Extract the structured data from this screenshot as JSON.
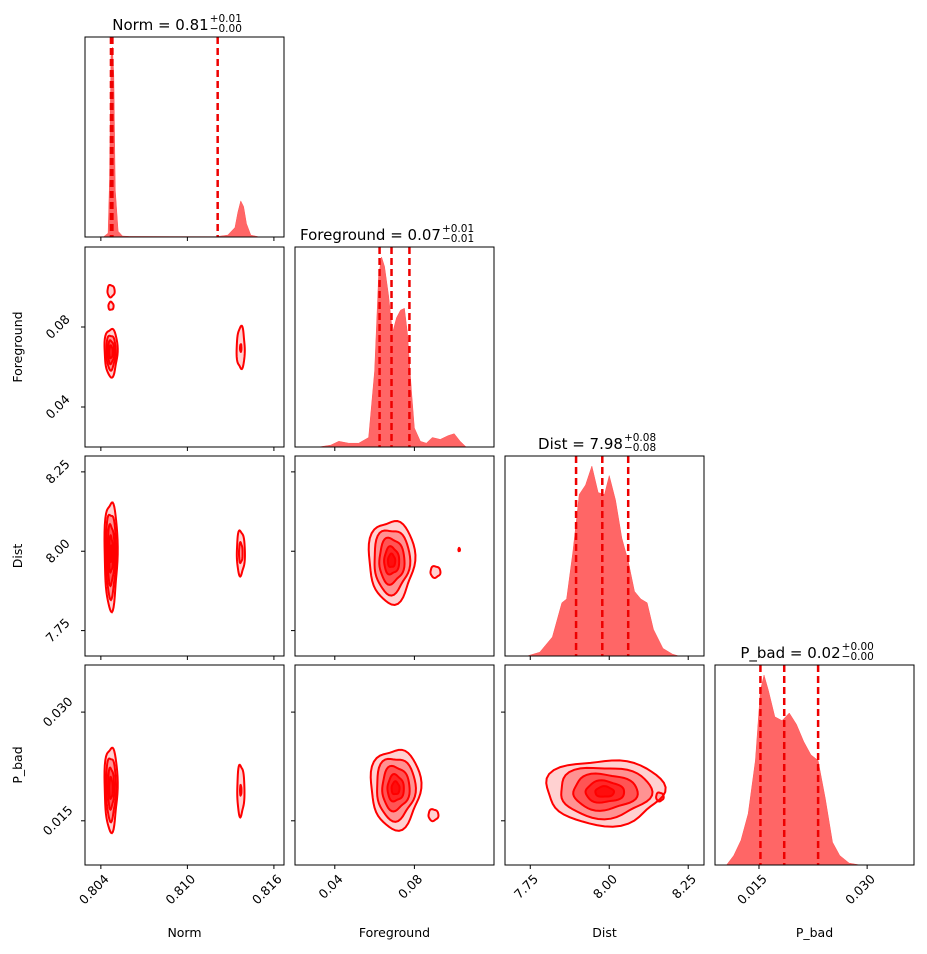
{
  "chart_data": {
    "type": "corner",
    "parameters": [
      {
        "name": "Norm",
        "label": "Norm",
        "range": [
          0.8029,
          0.8167
        ],
        "ticks": [
          0.804,
          0.81,
          0.816
        ],
        "tick_labels": [
          "0.804",
          "0.810",
          "0.816"
        ],
        "title_value": "0.81",
        "title_plus": "+0.01",
        "title_minus": "−0.00",
        "quantiles": [
          0.8047,
          0.8048,
          0.8121
        ],
        "marginal": [
          [
            0.8032,
            0
          ],
          [
            0.8042,
            0.002
          ],
          [
            0.8045,
            0.02
          ],
          [
            0.8046,
            0.3
          ],
          [
            0.8047,
            0.95
          ],
          [
            0.8048,
            1
          ],
          [
            0.8049,
            0.85
          ],
          [
            0.805,
            0.25
          ],
          [
            0.8052,
            0.03
          ],
          [
            0.8055,
            0.005
          ],
          [
            0.806,
            0.003
          ],
          [
            0.812,
            0.002
          ],
          [
            0.8128,
            0.01
          ],
          [
            0.8133,
            0.05
          ],
          [
            0.8135,
            0.13
          ],
          [
            0.8137,
            0.19
          ],
          [
            0.8139,
            0.16
          ],
          [
            0.8141,
            0.07
          ],
          [
            0.8144,
            0.01
          ],
          [
            0.815,
            0
          ]
        ]
      },
      {
        "name": "Foreground",
        "label": "Foreground",
        "range": [
          0.02,
          0.12
        ],
        "ticks": [
          0.04,
          0.08
        ],
        "tick_labels": [
          "0.04",
          "0.08"
        ],
        "title_value": "0.07",
        "title_plus": "+0.01",
        "title_minus": "−0.01",
        "quantiles": [
          0.0625,
          0.0685,
          0.0775
        ],
        "marginal": [
          [
            0.032,
            0
          ],
          [
            0.038,
            0.01
          ],
          [
            0.042,
            0.03
          ],
          [
            0.047,
            0.02
          ],
          [
            0.052,
            0.02
          ],
          [
            0.057,
            0.05
          ],
          [
            0.06,
            0.4
          ],
          [
            0.062,
            0.9
          ],
          [
            0.0635,
            1
          ],
          [
            0.065,
            0.95
          ],
          [
            0.067,
            0.8
          ],
          [
            0.069,
            0.6
          ],
          [
            0.071,
            0.68
          ],
          [
            0.073,
            0.72
          ],
          [
            0.075,
            0.73
          ],
          [
            0.0765,
            0.6
          ],
          [
            0.0785,
            0.3
          ],
          [
            0.08,
            0.1
          ],
          [
            0.083,
            0.03
          ],
          [
            0.086,
            0.02
          ],
          [
            0.089,
            0.05
          ],
          [
            0.093,
            0.04
          ],
          [
            0.097,
            0.06
          ],
          [
            0.1,
            0.07
          ],
          [
            0.103,
            0.03
          ],
          [
            0.106,
            0
          ]
        ]
      },
      {
        "name": "Dist",
        "label": "Dist",
        "range": [
          7.67,
          8.3
        ],
        "ticks": [
          7.75,
          8.0,
          8.25
        ],
        "tick_labels": [
          "7.75",
          "8.00",
          "8.25"
        ],
        "title_value": "7.98",
        "title_plus": "+0.08",
        "title_minus": "−0.08",
        "quantiles": [
          7.895,
          7.978,
          8.06
        ],
        "marginal": [
          [
            7.74,
            0
          ],
          [
            7.78,
            0.02
          ],
          [
            7.82,
            0.1
          ],
          [
            7.85,
            0.28
          ],
          [
            7.865,
            0.3
          ],
          [
            7.885,
            0.55
          ],
          [
            7.905,
            0.85
          ],
          [
            7.925,
            0.9
          ],
          [
            7.945,
            1
          ],
          [
            7.965,
            0.86
          ],
          [
            7.985,
            0.85
          ],
          [
            8.0,
            0.95
          ],
          [
            8.02,
            0.82
          ],
          [
            8.04,
            0.62
          ],
          [
            8.06,
            0.5
          ],
          [
            8.08,
            0.34
          ],
          [
            8.1,
            0.3
          ],
          [
            8.12,
            0.28
          ],
          [
            8.14,
            0.14
          ],
          [
            8.17,
            0.04
          ],
          [
            8.2,
            0.01
          ],
          [
            8.22,
            0
          ]
        ]
      },
      {
        "name": "P_bad",
        "label": "P_bad",
        "range": [
          0.0089,
          0.0365
        ],
        "ticks": [
          0.015,
          0.03
        ],
        "tick_labels": [
          "0.015",
          "0.030"
        ],
        "title_value": "0.02",
        "title_plus": "+0.00",
        "title_minus": "−0.00",
        "quantiles": [
          0.0152,
          0.0185,
          0.0232
        ],
        "marginal": [
          [
            0.0105,
            0
          ],
          [
            0.0115,
            0.05
          ],
          [
            0.0125,
            0.13
          ],
          [
            0.0135,
            0.27
          ],
          [
            0.0145,
            0.55
          ],
          [
            0.0152,
            0.92
          ],
          [
            0.0157,
            1
          ],
          [
            0.0163,
            0.92
          ],
          [
            0.0172,
            0.78
          ],
          [
            0.0182,
            0.76
          ],
          [
            0.0192,
            0.8
          ],
          [
            0.0202,
            0.74
          ],
          [
            0.0212,
            0.65
          ],
          [
            0.0222,
            0.58
          ],
          [
            0.0232,
            0.55
          ],
          [
            0.0242,
            0.35
          ],
          [
            0.0252,
            0.12
          ],
          [
            0.0262,
            0.05
          ],
          [
            0.0275,
            0.01
          ],
          [
            0.029,
            0
          ]
        ]
      }
    ],
    "pairs": [
      {
        "x": 0,
        "y": 1,
        "blobs": [
          {
            "cx": 0.8047,
            "cy": 0.0675,
            "rx": 0.00045,
            "ry": 0.012,
            "levels": [
              1.0,
              0.72,
              0.48,
              0.26
            ]
          },
          {
            "cx": 0.8047,
            "cy": 0.098,
            "rx": 0.00025,
            "ry": 0.003,
            "levels": [
              1.0
            ]
          },
          {
            "cx": 0.8047,
            "cy": 0.0905,
            "rx": 0.00018,
            "ry": 0.002,
            "levels": [
              1.0
            ]
          },
          {
            "cx": 0.8137,
            "cy": 0.0695,
            "rx": 0.00028,
            "ry": 0.0105,
            "levels": [
              1.0,
              0.18
            ]
          }
        ]
      },
      {
        "x": 0,
        "y": 2,
        "blobs": [
          {
            "cx": 0.8047,
            "cy": 7.99,
            "rx": 0.00045,
            "ry": 0.17,
            "levels": [
              1.0,
              0.78,
              0.55,
              0.33,
              0.15
            ]
          },
          {
            "cx": 0.8137,
            "cy": 7.995,
            "rx": 0.00028,
            "ry": 0.07,
            "levels": [
              1.0,
              0.45
            ]
          }
        ]
      },
      {
        "x": 1,
        "y": 2,
        "blobs": [
          {
            "cx": 0.0685,
            "cy": 7.97,
            "rx": 0.0115,
            "ry": 0.13,
            "levels": [
              1.0,
              0.78,
              0.55,
              0.33,
              0.16
            ]
          },
          {
            "cx": 0.0905,
            "cy": 7.935,
            "rx": 0.0025,
            "ry": 0.018,
            "levels": [
              1.0
            ]
          },
          {
            "cx": 0.1025,
            "cy": 8.005,
            "rx": 0.0004,
            "ry": 0.005,
            "levels": [
              1.0
            ]
          }
        ]
      },
      {
        "x": 0,
        "y": 3,
        "blobs": [
          {
            "cx": 0.8047,
            "cy": 0.0195,
            "rx": 0.00045,
            "ry": 0.0058,
            "levels": [
              1.0,
              0.75,
              0.48,
              0.25
            ]
          },
          {
            "cx": 0.8137,
            "cy": 0.0192,
            "rx": 0.00025,
            "ry": 0.0035,
            "levels": [
              1.0,
              0.2
            ]
          }
        ]
      },
      {
        "x": 1,
        "y": 3,
        "blobs": [
          {
            "cx": 0.0705,
            "cy": 0.0195,
            "rx": 0.0125,
            "ry": 0.0055,
            "levels": [
              1.0,
              0.78,
              0.55,
              0.33,
              0.16
            ]
          },
          {
            "cx": 0.0895,
            "cy": 0.0158,
            "rx": 0.0025,
            "ry": 0.0008,
            "levels": [
              1.0
            ]
          }
        ]
      },
      {
        "x": 2,
        "y": 3,
        "blobs": [
          {
            "cx": 7.985,
            "cy": 0.019,
            "rx": 0.185,
            "ry": 0.0045,
            "levels": [
              1.0,
              0.78,
              0.55,
              0.33,
              0.16
            ]
          },
          {
            "cx": 8.16,
            "cy": 0.0183,
            "rx": 0.012,
            "ry": 0.0006,
            "levels": [
              1.0
            ]
          }
        ]
      }
    ]
  }
}
